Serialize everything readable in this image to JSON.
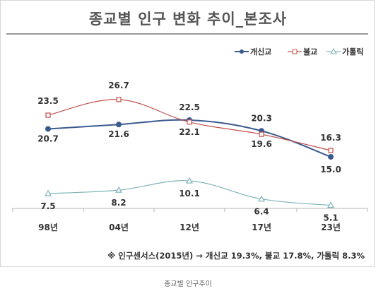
{
  "title": "종교별 인구 변화 추이_본조사",
  "footnote": "※ 인구센서스(2015년) → 개신교 19.3%, 불교 17.8%, 가톨릭 8.3%",
  "caption": "종교별 인구추이",
  "chart_data": {
    "type": "line",
    "categories": [
      "98년",
      "04년",
      "12년",
      "17년",
      "23년"
    ],
    "series": [
      {
        "name": "개신교",
        "color": "#3b5a8f",
        "marker": "circle",
        "values": [
          20.7,
          21.6,
          22.5,
          20.3,
          15.0
        ],
        "labels": [
          "20.7",
          "21.6",
          "22.5",
          "20.3",
          "15.0"
        ]
      },
      {
        "name": "불교",
        "color": "#c0504d",
        "marker": "square",
        "values": [
          23.5,
          26.7,
          22.1,
          19.6,
          16.3
        ],
        "labels": [
          "23.5",
          "26.7",
          "22.1",
          "19.6",
          "16.3"
        ]
      },
      {
        "name": "가톨릭",
        "color": "#7fb3b8",
        "marker": "triangle",
        "values": [
          7.5,
          8.2,
          10.1,
          6.4,
          5.1
        ],
        "labels": [
          "7.5",
          "8.2",
          "10.1",
          "6.4",
          "5.1"
        ]
      }
    ],
    "legend_position": "top-right",
    "grid": false
  }
}
